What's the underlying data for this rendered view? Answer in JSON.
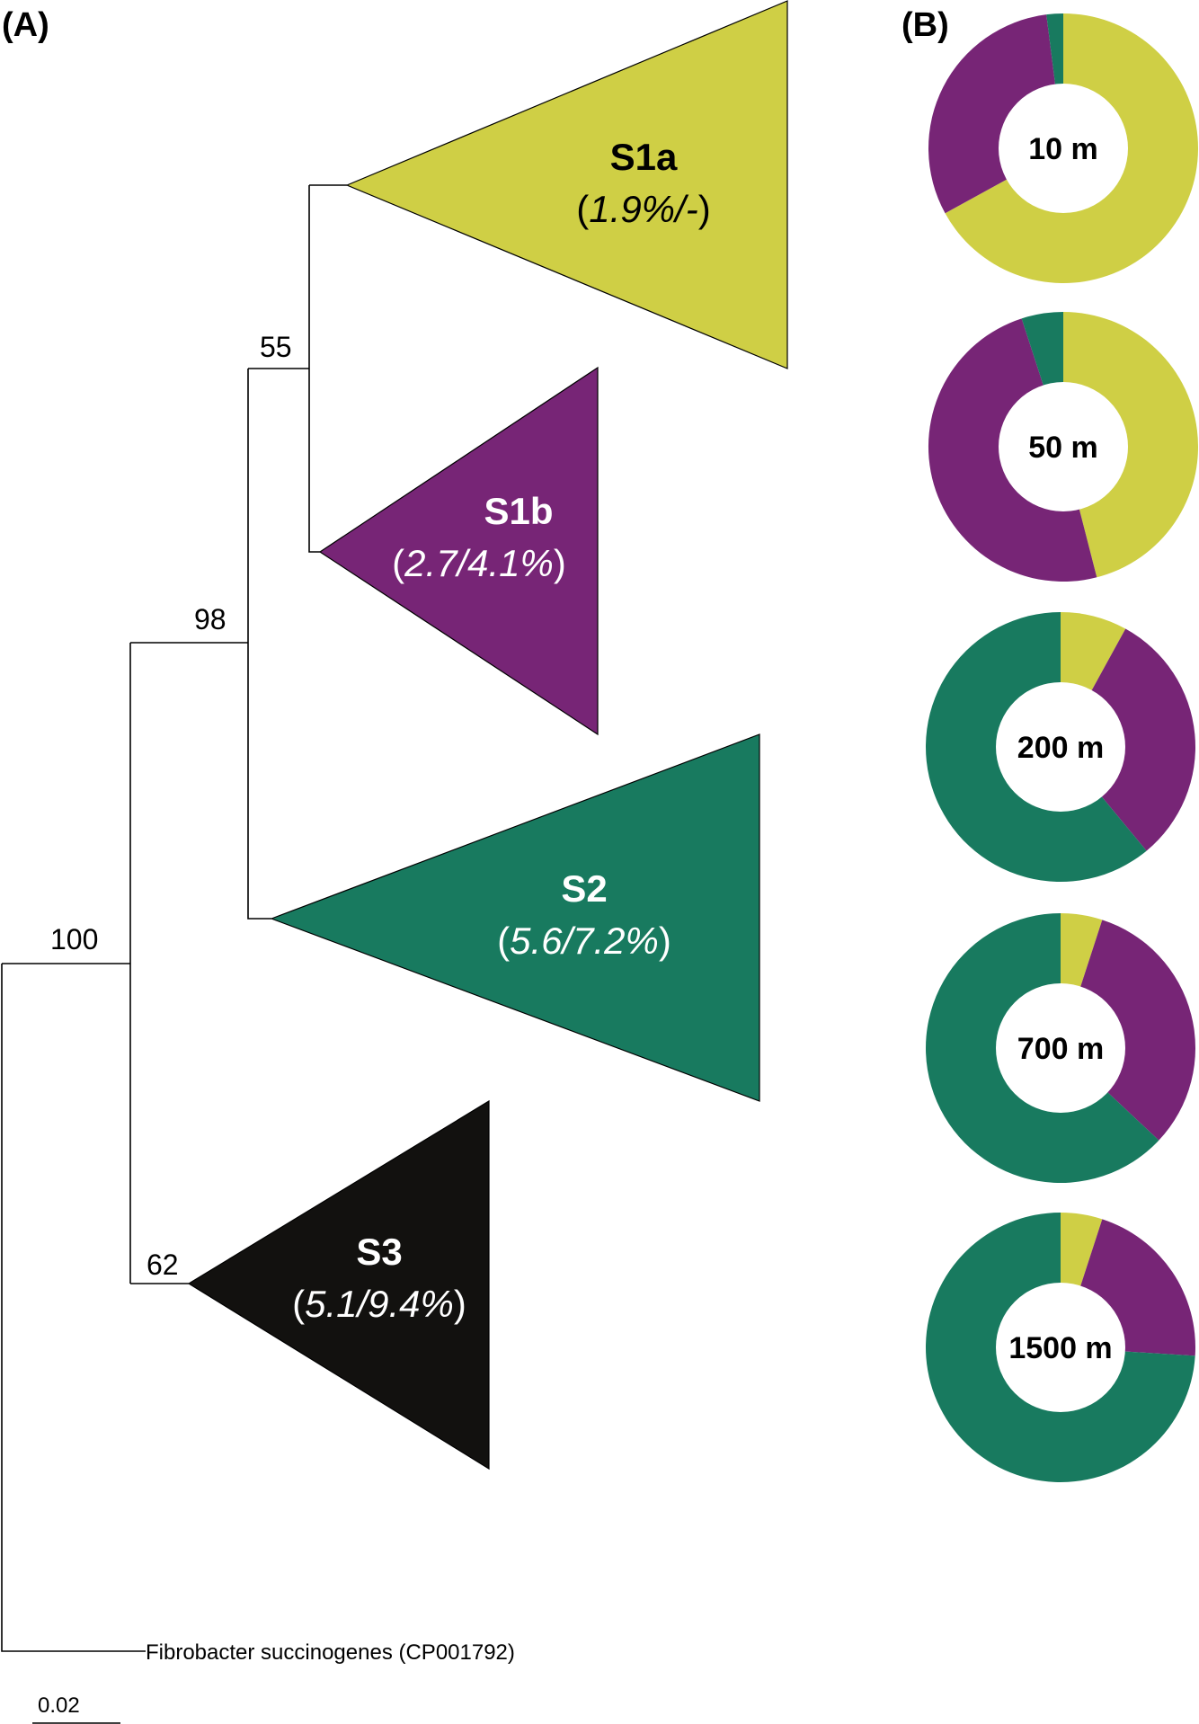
{
  "panels": {
    "a_label": "(A)",
    "b_label": "(B)"
  },
  "colors": {
    "s1a": "#cfcf45",
    "s1b": "#772576",
    "s2": "#187a5f",
    "s3": "#12110f",
    "branch": "#000000"
  },
  "tree": {
    "supports": {
      "root": "100",
      "s1_s2": "98",
      "s1": "55",
      "s3": "62"
    },
    "clades": [
      {
        "id": "s1a",
        "name": "S1a",
        "pct_open": "(",
        "pct_italic": "1.9%/-",
        "pct_close": ")"
      },
      {
        "id": "s1b",
        "name": "S1b",
        "pct_open": "(",
        "pct_italic": "2.7/4.1%",
        "pct_close": ")"
      },
      {
        "id": "s2",
        "name": "S2",
        "pct_open": "(",
        "pct_italic": "5.6/7.2%",
        "pct_close": ")"
      },
      {
        "id": "s3",
        "name": "S3",
        "pct_open": "(",
        "pct_italic": "5.1/9.4%",
        "pct_close": ")"
      }
    ],
    "outgroup": "Fibrobacter succinogenes (CP001792)",
    "scale_label": "0.02"
  },
  "donuts": [
    {
      "depth": "10 m",
      "fractions": {
        "s1a": 0.67,
        "s1b": 0.31,
        "s2": 0.02
      }
    },
    {
      "depth": "50 m",
      "fractions": {
        "s1a": 0.46,
        "s1b": 0.49,
        "s2": 0.05
      }
    },
    {
      "depth": "200 m",
      "fractions": {
        "s1a": 0.08,
        "s1b": 0.31,
        "s2": 0.61
      }
    },
    {
      "depth": "700 m",
      "fractions": {
        "s1a": 0.05,
        "s1b": 0.32,
        "s2": 0.63
      }
    },
    {
      "depth": "1500 m",
      "fractions": {
        "s1a": 0.05,
        "s1b": 0.21,
        "s2": 0.74
      }
    }
  ]
}
